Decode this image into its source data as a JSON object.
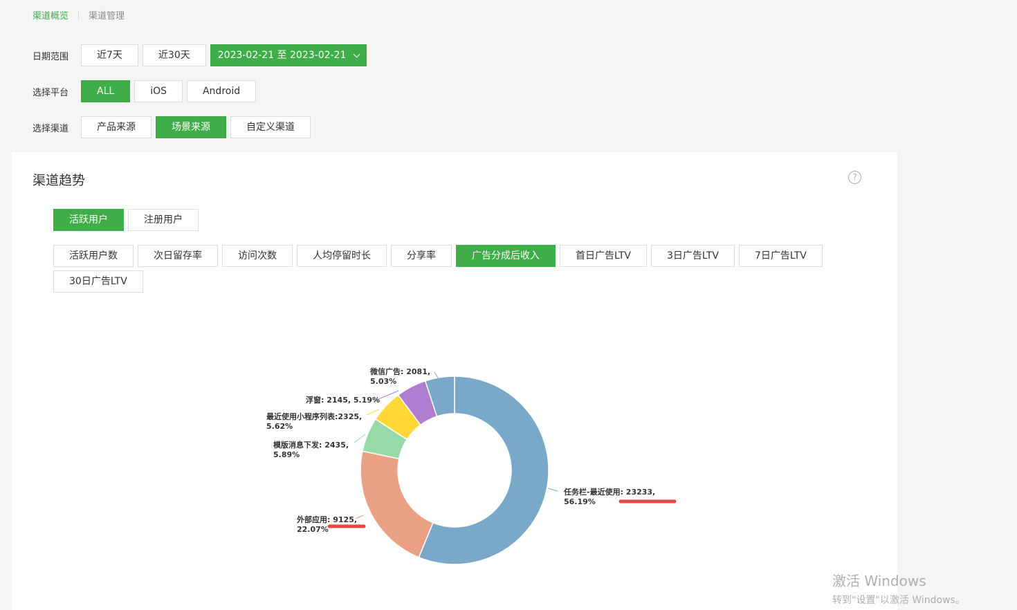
{
  "breadcrumb": {
    "active": "渠道概览",
    "other": "渠道管理"
  },
  "filters": {
    "date_label": "日期范围",
    "date_options": [
      "近7天",
      "近30天"
    ],
    "date_range": "2023-02-21 至 2023-02-21",
    "platform_label": "选择平台",
    "platforms": [
      "ALL",
      "iOS",
      "Android"
    ],
    "channel_label": "选择渠道",
    "channels": [
      "产品来源",
      "场景来源",
      "自定义渠道"
    ]
  },
  "card": {
    "title": "渠道趋势",
    "help_icon": "?",
    "user_tabs": [
      "活跃用户",
      "注册用户"
    ],
    "metrics": [
      "活跃用户数",
      "次日留存率",
      "访问次数",
      "人均停留时长",
      "分享率",
      "广告分成后收入",
      "首日广告LTV",
      "3日广告LTV",
      "7日广告LTV",
      "30日广告LTV"
    ]
  },
  "chart_data": {
    "type": "pie",
    "donut": true,
    "series": [
      {
        "values": [
          {
            "name": "任务栏-最近使用",
            "value": 23233,
            "percent": "56.19%",
            "label_line1": "任务栏-最近使用: 23233,",
            "label_line2": "56.19%",
            "color": "#7aa8c8"
          },
          {
            "name": "外部应用",
            "value": 9125,
            "percent": "22.07%",
            "label_line1": "外部应用: 9125,",
            "label_line2": "22.07%",
            "color": "#e9a085"
          },
          {
            "name": "模版消息下发",
            "value": 2435,
            "percent": "5.89%",
            "label_line1": "模版消息下发: 2435,",
            "label_line2": "5.89%",
            "color": "#98d9a8"
          },
          {
            "name": "最近使用小程序列表",
            "value": 2325,
            "percent": "5.62%",
            "label_line1": "最近使用小程序列表:2325,",
            "label_line2": "5.62%",
            "color": "#ffd838"
          },
          {
            "name": "浮窗",
            "value": 2145,
            "percent": "5.19%",
            "label_line1": "浮窗: 2145, 5.19%",
            "label_line2": "",
            "color": "#b07dd0"
          },
          {
            "name": "微信广告",
            "value": 2081,
            "percent": "5.03%",
            "label_line1": "微信广告: 2081,",
            "label_line2": "5.03%",
            "color": "#7aa8c8"
          }
        ]
      }
    ],
    "highlight_color": "#e84545"
  },
  "watermark": {
    "line1": "激活 Windows",
    "line2": "转到\"设置\"以激活 Windows。"
  }
}
